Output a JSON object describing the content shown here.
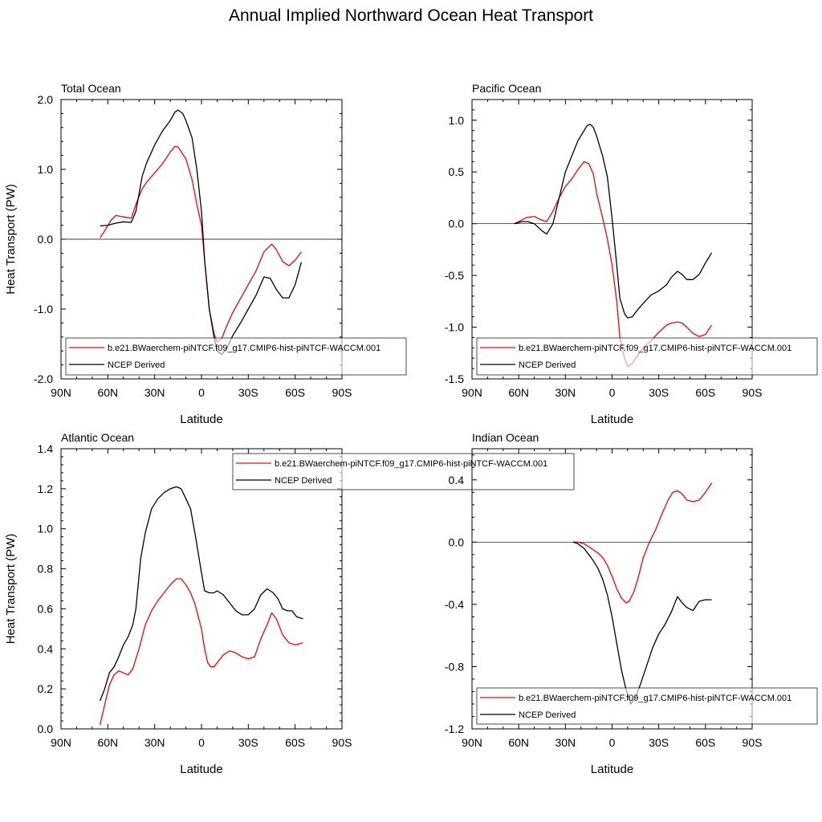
{
  "figure_title": "Annual Implied Northward Ocean Heat Transport",
  "colors": {
    "model": "#ff0000",
    "obs": "#000000"
  },
  "chart_data": [
    {
      "type": "line",
      "title": "Total Ocean",
      "xlabel": "Latitude",
      "ylabel": "Heat Transport (PW)",
      "xlim": [
        90,
        -90
      ],
      "ylim": [
        -2.0,
        2.0
      ],
      "xticks": [
        90,
        60,
        30,
        0,
        -30,
        -60,
        -90
      ],
      "xtick_labels": [
        "90N",
        "60N",
        "30N",
        "0",
        "30S",
        "60S",
        "90S"
      ],
      "yticks": [
        -2.0,
        -1.0,
        0.0,
        1.0,
        2.0
      ],
      "ytick_labels": [
        "-2.0",
        "-1.0",
        "0.0",
        "1.0",
        "2.0"
      ],
      "zero_line": true,
      "legend_position": "bottom",
      "series": [
        {
          "name": "b.e21.BWaerchem-piNTCF.f09_g17.CMIP6-hist-piNTCF-WACCM.001",
          "color": "#ff0000",
          "x": [
            65,
            62,
            58,
            55,
            50,
            45,
            42,
            38,
            35,
            30,
            25,
            20,
            17,
            15,
            10,
            6,
            3,
            0,
            -2,
            -5,
            -8,
            -10,
            -13,
            -16,
            -20,
            -25,
            -30,
            -35,
            -40,
            -45,
            -48,
            -52,
            -56,
            -60,
            -64
          ],
          "y": [
            0.02,
            0.12,
            0.27,
            0.34,
            0.32,
            0.3,
            0.5,
            0.72,
            0.82,
            0.95,
            1.08,
            1.25,
            1.33,
            1.32,
            1.15,
            0.85,
            0.5,
            0.2,
            -0.3,
            -1.0,
            -1.35,
            -1.47,
            -1.42,
            -1.25,
            -1.05,
            -0.85,
            -0.65,
            -0.45,
            -0.18,
            -0.07,
            -0.15,
            -0.32,
            -0.38,
            -0.3,
            -0.18
          ]
        },
        {
          "name": "NCEP Derived",
          "color": "#000000",
          "x": [
            65,
            60,
            55,
            50,
            45,
            42,
            38,
            35,
            30,
            25,
            20,
            17,
            15,
            12,
            10,
            6,
            3,
            0,
            -2,
            -5,
            -8,
            -10,
            -13,
            -16,
            -20,
            -25,
            -30,
            -35,
            -40,
            -44,
            -48,
            -52,
            -56,
            -60,
            -64
          ],
          "y": [
            0.19,
            0.2,
            0.23,
            0.25,
            0.24,
            0.4,
            0.9,
            1.1,
            1.35,
            1.55,
            1.7,
            1.82,
            1.85,
            1.8,
            1.7,
            1.45,
            1.0,
            0.4,
            -0.3,
            -1.0,
            -1.4,
            -1.6,
            -1.65,
            -1.57,
            -1.38,
            -1.2,
            -1.0,
            -0.8,
            -0.54,
            -0.56,
            -0.72,
            -0.84,
            -0.84,
            -0.65,
            -0.33
          ]
        }
      ]
    },
    {
      "type": "line",
      "title": "Pacific Ocean",
      "xlabel": "Latitude",
      "ylabel": "",
      "xlim": [
        90,
        -90
      ],
      "ylim": [
        -1.5,
        1.2
      ],
      "xticks": [
        90,
        60,
        30,
        0,
        -30,
        -60,
        -90
      ],
      "xtick_labels": [
        "90N",
        "60N",
        "30N",
        "0",
        "30S",
        "60S",
        "90S"
      ],
      "yticks": [
        -1.5,
        -1.0,
        -0.5,
        0.0,
        0.5,
        1.0
      ],
      "ytick_labels": [
        "-1.5",
        "-1.0",
        "-0.5",
        "0.0",
        "0.5",
        "1.0"
      ],
      "zero_line": true,
      "legend_position": "bottom",
      "series": [
        {
          "name": "b.e21.BWaerchem-piNTCF.f09_g17.CMIP6-hist-piNTCF-WACCM.001",
          "color": "#ff0000",
          "x": [
            63,
            60,
            55,
            50,
            46,
            42,
            38,
            34,
            30,
            26,
            22,
            18,
            15,
            12,
            10,
            6,
            3,
            0,
            -3,
            -5,
            -8,
            -10,
            -13,
            -16,
            -20,
            -25,
            -30,
            -35,
            -38,
            -42,
            -45,
            -48,
            -52,
            -56,
            -60,
            -64
          ],
          "y": [
            0.0,
            0.02,
            0.06,
            0.07,
            0.04,
            0.02,
            0.12,
            0.25,
            0.36,
            0.43,
            0.52,
            0.6,
            0.58,
            0.48,
            0.3,
            0.05,
            -0.15,
            -0.4,
            -0.75,
            -1.1,
            -1.3,
            -1.38,
            -1.35,
            -1.28,
            -1.2,
            -1.13,
            -1.05,
            -0.98,
            -0.96,
            -0.95,
            -0.96,
            -1.0,
            -1.06,
            -1.09,
            -1.07,
            -0.98
          ]
        },
        {
          "name": "NCEP Derived",
          "color": "#000000",
          "x": [
            63,
            58,
            54,
            50,
            45,
            42,
            38,
            34,
            30,
            26,
            22,
            18,
            16,
            14,
            12,
            10,
            6,
            3,
            0,
            -3,
            -5,
            -8,
            -10,
            -13,
            -16,
            -20,
            -25,
            -30,
            -35,
            -38,
            -42,
            -45,
            -48,
            -52,
            -56,
            -60,
            -64
          ],
          "y": [
            0.0,
            0.02,
            0.02,
            0.0,
            -0.07,
            -0.1,
            0.0,
            0.25,
            0.5,
            0.65,
            0.8,
            0.9,
            0.95,
            0.96,
            0.93,
            0.85,
            0.65,
            0.45,
            0.05,
            -0.4,
            -0.72,
            -0.87,
            -0.91,
            -0.9,
            -0.84,
            -0.77,
            -0.69,
            -0.65,
            -0.59,
            -0.52,
            -0.46,
            -0.49,
            -0.54,
            -0.54,
            -0.49,
            -0.38,
            -0.28
          ]
        }
      ]
    },
    {
      "type": "line",
      "title": "Atlantic Ocean",
      "xlabel": "Latitude",
      "ylabel": "Heat Transport (PW)",
      "xlim": [
        90,
        -90
      ],
      "ylim": [
        0.0,
        1.4
      ],
      "xticks": [
        90,
        60,
        30,
        0,
        -30,
        -60,
        -90
      ],
      "xtick_labels": [
        "90N",
        "60N",
        "30N",
        "0",
        "30S",
        "60S",
        "90S"
      ],
      "yticks": [
        0.0,
        0.2,
        0.4,
        0.6,
        0.8,
        1.0,
        1.2,
        1.4
      ],
      "ytick_labels": [
        "0.0",
        "0.2",
        "0.4",
        "0.6",
        "0.8",
        "1.0",
        "1.2",
        "1.4"
      ],
      "zero_line": false,
      "legend_position": "top-center",
      "series": [
        {
          "name": "b.e21.BWaerchem-piNTCF.f09_g17.CMIP6-hist-piNTCF-WACCM.001",
          "color": "#ff0000",
          "x": [
            65,
            62,
            59,
            56,
            53,
            50,
            47,
            44,
            40,
            36,
            32,
            28,
            24,
            20,
            16,
            13,
            10,
            7,
            4,
            0,
            -2,
            -4,
            -6,
            -8,
            -10,
            -14,
            -18,
            -22,
            -26,
            -30,
            -34,
            -38,
            -42,
            -45,
            -48,
            -52,
            -56,
            -60,
            -65
          ],
          "y": [
            0.02,
            0.12,
            0.22,
            0.27,
            0.29,
            0.28,
            0.27,
            0.3,
            0.4,
            0.52,
            0.59,
            0.64,
            0.68,
            0.72,
            0.75,
            0.75,
            0.72,
            0.68,
            0.62,
            0.5,
            0.4,
            0.33,
            0.31,
            0.31,
            0.33,
            0.37,
            0.39,
            0.38,
            0.36,
            0.35,
            0.36,
            0.45,
            0.52,
            0.58,
            0.55,
            0.47,
            0.43,
            0.42,
            0.43
          ]
        },
        {
          "name": "NCEP Derived",
          "color": "#000000",
          "x": [
            65,
            62,
            59,
            56,
            53,
            50,
            47,
            44,
            42,
            39,
            36,
            32,
            28,
            24,
            20,
            16,
            13,
            10,
            7,
            4,
            0,
            -2,
            -5,
            -8,
            -10,
            -14,
            -18,
            -22,
            -26,
            -30,
            -34,
            -38,
            -42,
            -46,
            -49,
            -52,
            -55,
            -58,
            -61,
            -65
          ],
          "y": [
            0.14,
            0.2,
            0.28,
            0.31,
            0.36,
            0.42,
            0.46,
            0.52,
            0.6,
            0.85,
            0.98,
            1.1,
            1.15,
            1.18,
            1.2,
            1.21,
            1.2,
            1.15,
            1.1,
            0.97,
            0.78,
            0.69,
            0.68,
            0.68,
            0.69,
            0.67,
            0.63,
            0.59,
            0.57,
            0.57,
            0.6,
            0.67,
            0.7,
            0.68,
            0.65,
            0.6,
            0.59,
            0.59,
            0.56,
            0.55
          ]
        }
      ]
    },
    {
      "type": "line",
      "title": "Indian Ocean",
      "xlabel": "Latitude",
      "ylabel": "",
      "xlim": [
        90,
        -90
      ],
      "ylim": [
        -1.2,
        0.6
      ],
      "xticks": [
        90,
        60,
        30,
        0,
        -30,
        -60,
        -90
      ],
      "xtick_labels": [
        "90N",
        "60N",
        "30N",
        "0",
        "30S",
        "60S",
        "90S"
      ],
      "yticks": [
        -1.2,
        -0.8,
        -0.4,
        0.0,
        0.4
      ],
      "ytick_labels": [
        "-1.2",
        "-0.8",
        "-0.4",
        "0.0",
        "0.4"
      ],
      "zero_line": true,
      "legend_position": "bottom",
      "series": [
        {
          "name": "b.e21.BWaerchem-piNTCF.f09_g17.CMIP6-hist-piNTCF-WACCM.001",
          "color": "#ff0000",
          "x": [
            25,
            22,
            18,
            15,
            12,
            9,
            6,
            3,
            0,
            -3,
            -6,
            -9,
            -11,
            -14,
            -17,
            -20,
            -24,
            -28,
            -32,
            -36,
            -39,
            -42,
            -45,
            -48,
            -52,
            -56,
            -60,
            -64
          ],
          "y": [
            0.0,
            0.0,
            -0.01,
            -0.03,
            -0.05,
            -0.07,
            -0.1,
            -0.15,
            -0.22,
            -0.3,
            -0.36,
            -0.39,
            -0.38,
            -0.32,
            -0.22,
            -0.1,
            0.0,
            0.08,
            0.18,
            0.27,
            0.32,
            0.33,
            0.31,
            0.27,
            0.26,
            0.27,
            0.32,
            0.38
          ]
        },
        {
          "name": "NCEP Derived",
          "color": "#000000",
          "x": [
            25,
            22,
            18,
            15,
            12,
            9,
            6,
            3,
            0,
            -3,
            -6,
            -9,
            -12,
            -15,
            -18,
            -22,
            -26,
            -30,
            -34,
            -38,
            -42,
            -45,
            -48,
            -52,
            -56,
            -60,
            -64
          ],
          "y": [
            0.0,
            -0.01,
            -0.04,
            -0.08,
            -0.12,
            -0.17,
            -0.24,
            -0.34,
            -0.48,
            -0.65,
            -0.82,
            -0.95,
            -1.04,
            -1.0,
            -0.92,
            -0.8,
            -0.68,
            -0.59,
            -0.53,
            -0.45,
            -0.35,
            -0.39,
            -0.42,
            -0.44,
            -0.38,
            -0.37,
            -0.37
          ]
        }
      ]
    }
  ]
}
